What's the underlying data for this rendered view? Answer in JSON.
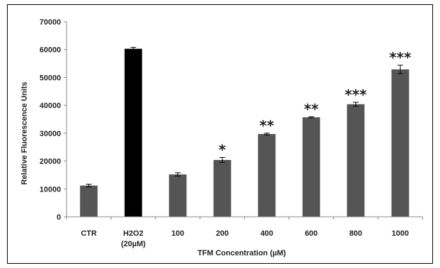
{
  "chart_data": {
    "type": "bar",
    "title": "",
    "xlabel": "TFM Concentration (µM)",
    "ylabel": "Relative Fluorescence Units",
    "ylim": [
      0,
      70000
    ],
    "yticks": [
      0,
      10000,
      20000,
      30000,
      40000,
      50000,
      60000,
      70000
    ],
    "grid": false,
    "legend": "none",
    "categories": [
      [
        "CTR"
      ],
      [
        "H2O2",
        "(20µM)"
      ],
      [
        "100"
      ],
      [
        "200"
      ],
      [
        "400"
      ],
      [
        "600"
      ],
      [
        "800"
      ],
      [
        "1000"
      ]
    ],
    "values": [
      11200,
      60300,
      15200,
      20400,
      29700,
      35700,
      40400,
      52900
    ],
    "errors": [
      500,
      500,
      600,
      900,
      300,
      200,
      700,
      1500
    ],
    "significance": [
      "",
      "",
      "",
      "*",
      "**",
      "**",
      "***",
      "***"
    ],
    "colors": [
      "#555555",
      "#000000",
      "#555555",
      "#555555",
      "#555555",
      "#555555",
      "#555555",
      "#555555"
    ]
  }
}
